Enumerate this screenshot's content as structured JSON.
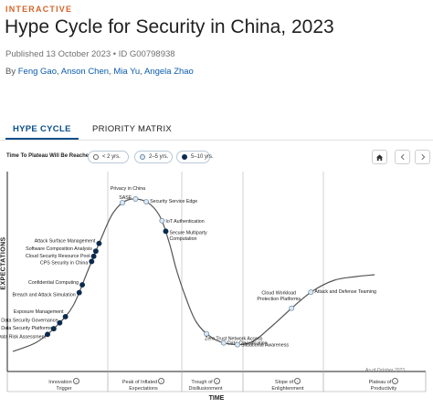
{
  "header": {
    "eyebrow": "INTERACTIVE",
    "title": "Hype Cycle for Security in China, 2023",
    "published": "Published 13 October 2023",
    "separator": "•",
    "doc_id": "ID G00798938",
    "by": "By",
    "authors": [
      "Feng Gao",
      "Anson Chen",
      "Mia Yu",
      "Angela Zhao"
    ]
  },
  "tabs": [
    {
      "label": "HYPE CYCLE",
      "active": true
    },
    {
      "label": "PRIORITY MATRIX",
      "active": false
    }
  ],
  "controls": {
    "label": "Time To Plateau Will Be Reached:",
    "options": [
      {
        "label": "< 2 yrs.",
        "marker": "open"
      },
      {
        "label": "2–5 yrs.",
        "marker": "light"
      },
      {
        "label": "5–10 yrs.",
        "marker": "dark"
      }
    ],
    "home_icon": "home-icon",
    "prev_icon": "chevron-left-icon",
    "next_icon": "chevron-right-icon"
  },
  "colors": {
    "curve": "#555555",
    "marker_dark": "#0c2a4e",
    "marker_light": "#dce7f2",
    "marker_light_stroke": "#6b8aa6",
    "accent": "#d6632a",
    "link": "#0b5cad"
  },
  "chart_data": {
    "type": "line",
    "ylabel": "EXPECTATIONS",
    "xlabel": "TIME",
    "as_of": "As of October 2023",
    "phases": [
      {
        "label": "Innovation Trigger",
        "lines": [
          "Innovation",
          "Trigger"
        ]
      },
      {
        "label": "Peak of Inflated Expectations",
        "lines": [
          "Peak of Inflated",
          "Expectations"
        ]
      },
      {
        "label": "Trough of Disillusionment",
        "lines": [
          "Trough of",
          "Disillusionment"
        ]
      },
      {
        "label": "Slope of Enlightenment",
        "lines": [
          "Slope of",
          "Enlightenment"
        ]
      },
      {
        "label": "Plateau of Productivity",
        "lines": [
          "Plateau of",
          "Productivity"
        ]
      }
    ],
    "technologies": [
      {
        "name": "Data Risk Assessment",
        "t": 0.07,
        "plateau": "5–10 yrs."
      },
      {
        "name": "Data Security Platforms",
        "t": 0.085,
        "plateau": "5–10 yrs."
      },
      {
        "name": "Data Security Governance",
        "t": 0.1,
        "plateau": "5–10 yrs."
      },
      {
        "name": "Exposure Management",
        "t": 0.115,
        "plateau": "5–10 yrs."
      },
      {
        "name": "Breach and Attack Simulation",
        "t": 0.165,
        "plateau": "5–10 yrs."
      },
      {
        "name": "Confidential Computing",
        "t": 0.18,
        "plateau": "5–10 yrs."
      },
      {
        "name": "CPS Security in China",
        "t": 0.225,
        "plateau": "5–10 yrs."
      },
      {
        "name": "Cloud Security Resource Pool",
        "t": 0.235,
        "plateau": "5–10 yrs."
      },
      {
        "name": "Software Composition Analysis",
        "t": 0.245,
        "plateau": "5–10 yrs."
      },
      {
        "name": "Attack Surface Management",
        "t": 0.26,
        "plateau": "5–10 yrs."
      },
      {
        "name": "Privacy in China",
        "t": 0.345,
        "plateau": "2–5 yrs."
      },
      {
        "name": "SASE",
        "t": 0.37,
        "plateau": "2–5 yrs."
      },
      {
        "name": "Security Service Edge",
        "t": 0.39,
        "plateau": "2–5 yrs."
      },
      {
        "name": "IoT Authentication",
        "t": 0.435,
        "plateau": "2–5 yrs."
      },
      {
        "name": "Secure Multiparty Computation",
        "t": 0.455,
        "plateau": "5–10 yrs."
      },
      {
        "name": "Zero Trust Network Access",
        "t": 0.655,
        "plateau": "2–5 yrs."
      },
      {
        "name": "Data Classification",
        "t": 0.69,
        "plateau": "2–5 yrs."
      },
      {
        "name": "Situational Awareness",
        "t": 0.715,
        "plateau": "2–5 yrs."
      },
      {
        "name": "Cloud Workload Protection Platforms",
        "t": 0.835,
        "plateau": "2–5 yrs."
      },
      {
        "name": "Attack and Defense Teaming",
        "t": 0.88,
        "plateau": "2–5 yrs."
      }
    ]
  }
}
